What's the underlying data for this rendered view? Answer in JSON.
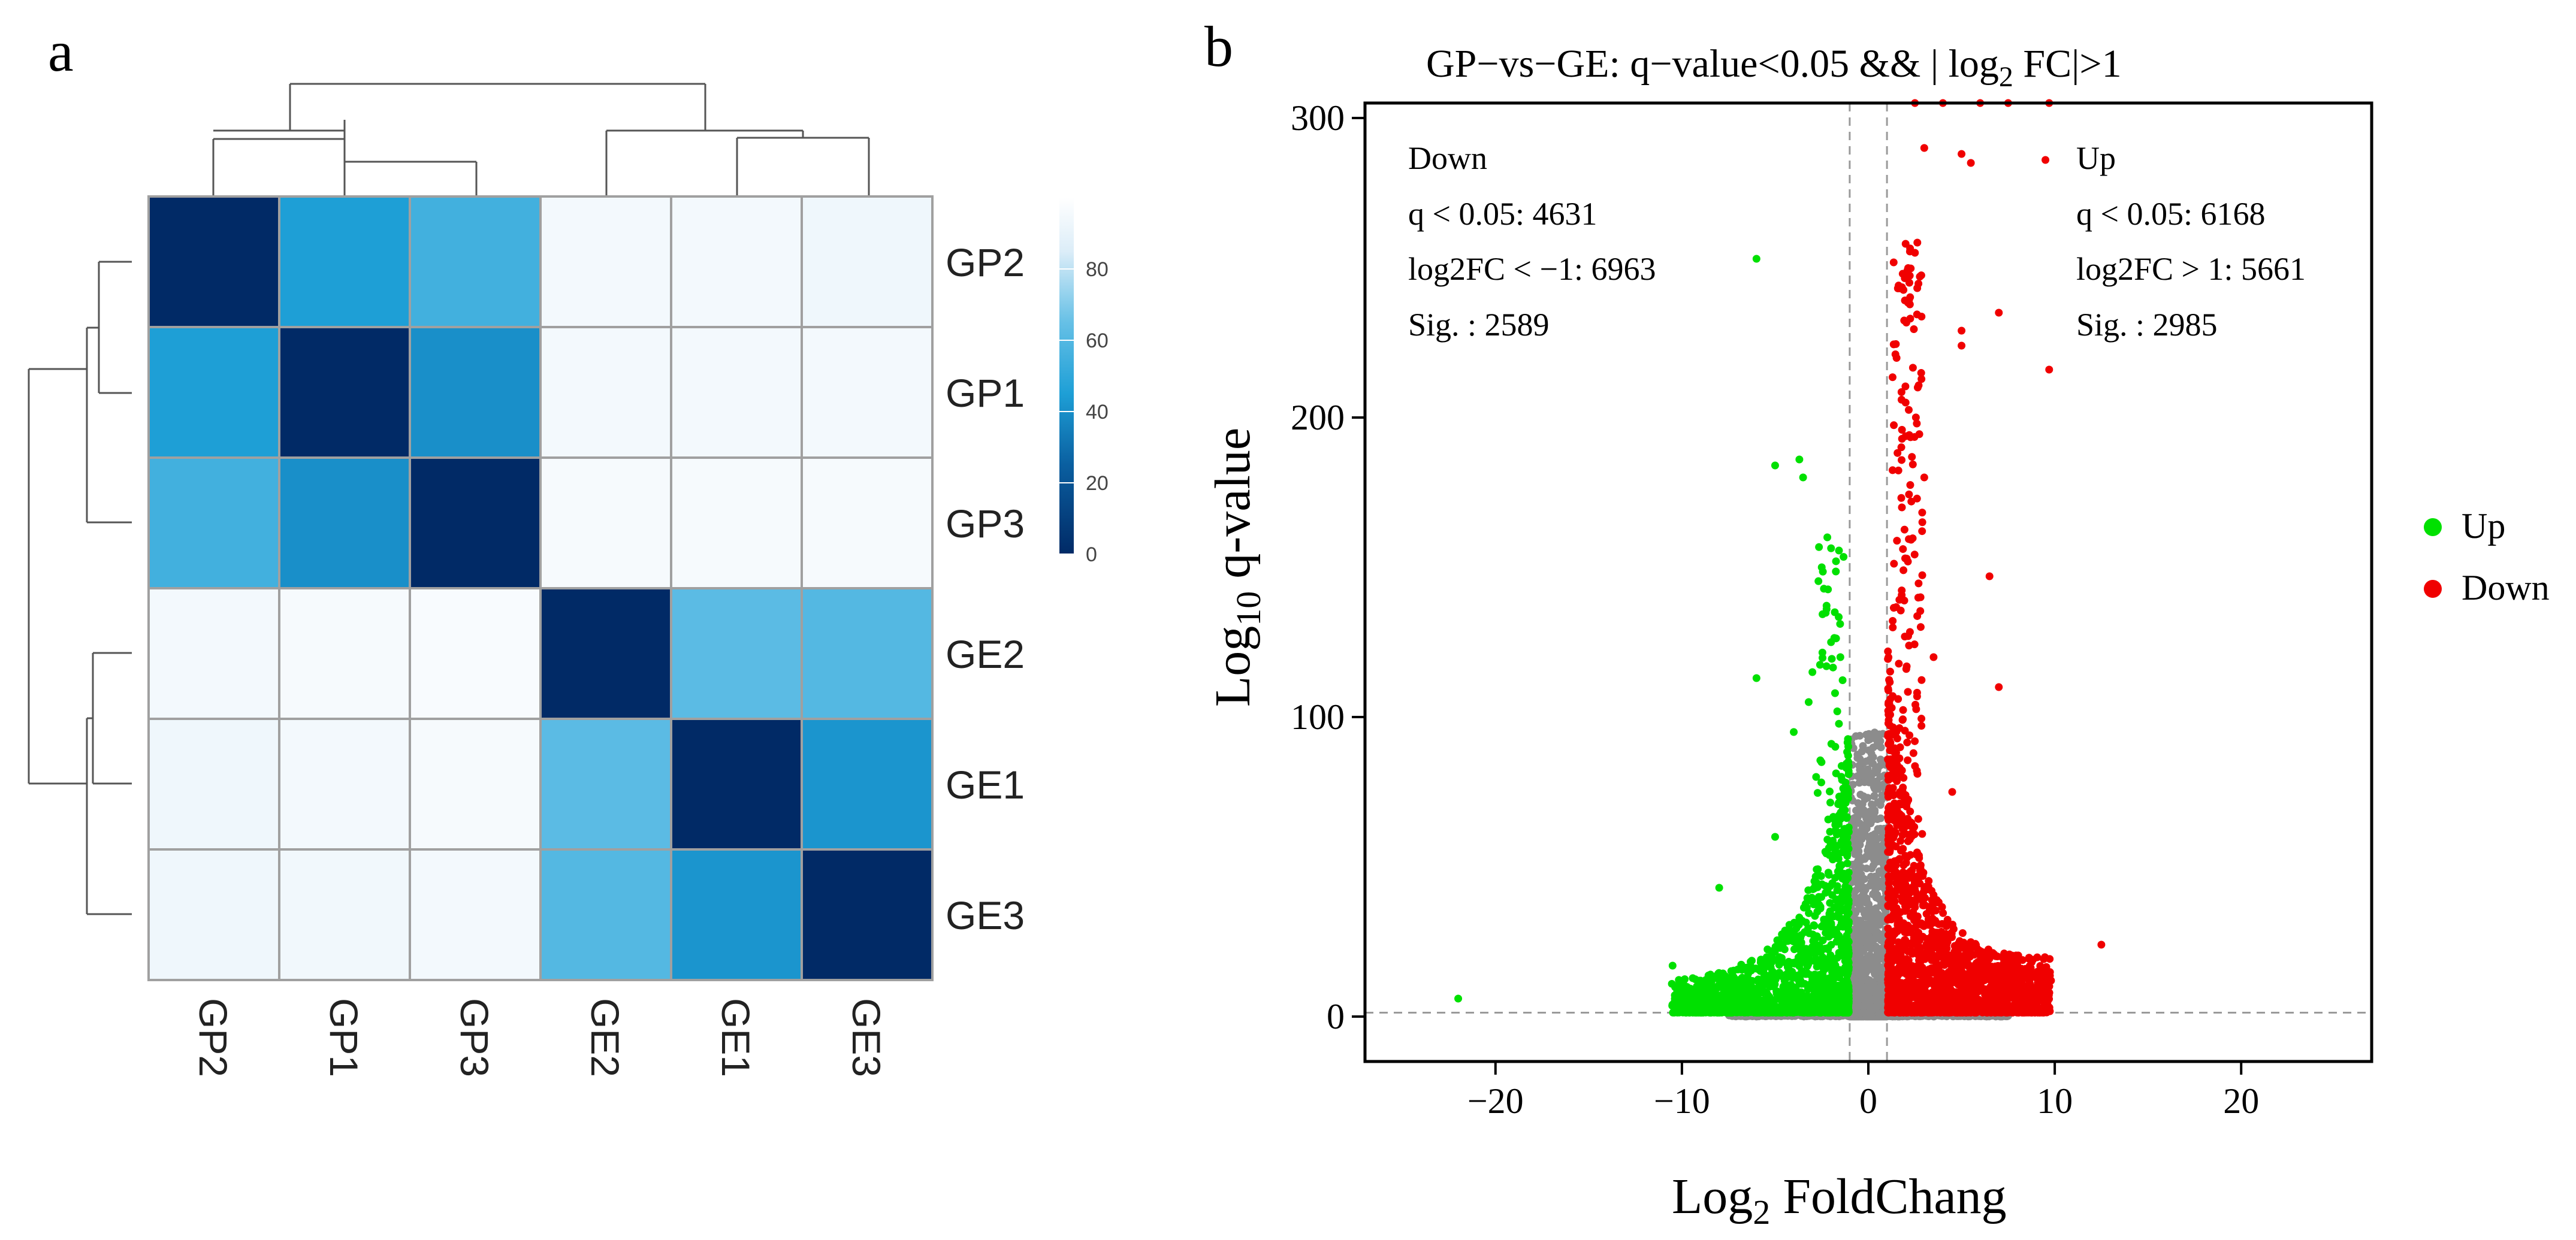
{
  "panels": {
    "a": {
      "letter": "a"
    },
    "b": {
      "letter": "b"
    }
  },
  "chart_data": [
    {
      "type": "heatmap",
      "title": "",
      "row_labels": [
        "GP2",
        "GP1",
        "GP3",
        "GE2",
        "GE1",
        "GE3"
      ],
      "col_labels": [
        "GP2",
        "GP1",
        "GP3",
        "GE2",
        "GE1",
        "GE3"
      ],
      "values": [
        [
          0,
          45,
          55,
          95,
          95,
          93
        ],
        [
          45,
          0,
          40,
          95,
          95,
          95
        ],
        [
          55,
          40,
          0,
          96,
          96,
          96
        ],
        [
          95,
          96,
          97,
          0,
          62,
          60
        ],
        [
          93,
          95,
          96,
          62,
          0,
          42
        ],
        [
          93,
          94,
          95,
          60,
          42,
          0
        ]
      ],
      "colorbar": {
        "min": 0,
        "max": 100,
        "ticks": [
          0,
          20,
          40,
          60,
          80
        ]
      },
      "row_dendrogram": true,
      "col_dendrogram": true,
      "colors": {
        "low": "#012a66",
        "mid": "#1e9fd6",
        "high": "#ffffff",
        "grid": "#a0a0a0"
      }
    },
    {
      "type": "scatter",
      "title_parts": {
        "main": "GP−vs−GE: q−value<0.05 && | log",
        "sub": "2",
        "tail": " FC|>1"
      },
      "xlabel": {
        "main": "Log",
        "sub": "2",
        "tail": " FoldChang"
      },
      "ylabel": {
        "main": "Log",
        "sub": "10",
        "tail": " q-value"
      },
      "xlim": [
        -27,
        27
      ],
      "ylim": [
        -15,
        305
      ],
      "xticks": [
        -20,
        -10,
        0,
        10,
        20
      ],
      "yticks": [
        0,
        100,
        200,
        300
      ],
      "xtick_labels": [
        "−20",
        "−10",
        "0",
        "10",
        "20"
      ],
      "ytick_labels": [
        "0",
        "100",
        "200",
        "300"
      ],
      "threshold_lines": {
        "x": [
          -1,
          1
        ],
        "y": 1.3
      },
      "annotations": {
        "down": [
          "Down",
          "q < 0.05: 4631",
          "log2FC < −1: 6963",
          "Sig. : 2589"
        ],
        "up": [
          "Up",
          "q < 0.05: 6168",
          "log2FC > 1: 5661",
          "Sig. : 2985"
        ]
      },
      "legend": [
        {
          "label": "Up",
          "color": "#00e000"
        },
        {
          "label": "Down",
          "color": "#f00000"
        }
      ],
      "series": [
        {
          "name": "Up",
          "color": "#00e000",
          "points": [
            [
              -22,
              6
            ],
            [
              -6,
              253
            ],
            [
              -5,
              184
            ],
            [
              -3.7,
              186
            ],
            [
              -3.5,
              180
            ],
            [
              -2.2,
              160
            ],
            [
              -2.5,
              150
            ],
            [
              -2,
              125
            ],
            [
              -3,
              115
            ],
            [
              -6,
              113
            ],
            [
              -8,
              43
            ],
            [
              -10.5,
              17
            ],
            [
              -9,
              12
            ],
            [
              -4,
              95
            ],
            [
              -2.8,
              80
            ],
            [
              -5,
              60
            ],
            [
              -3.2,
              105
            ],
            [
              -1.8,
              135
            ],
            [
              -1.5,
              120
            ]
          ]
        },
        {
          "name": "Down",
          "color": "#f00000",
          "points": [
            [
              2.5,
              305
            ],
            [
              4,
              305
            ],
            [
              6,
              305
            ],
            [
              7.5,
              305
            ],
            [
              9.7,
              305
            ],
            [
              3,
              290
            ],
            [
              5,
              288
            ],
            [
              5.5,
              285
            ],
            [
              9.5,
              286
            ],
            [
              2,
              258
            ],
            [
              2.5,
              255
            ],
            [
              2.2,
              245
            ],
            [
              7,
              235
            ],
            [
              5,
              229
            ],
            [
              5,
              224
            ],
            [
              9.7,
              216
            ],
            [
              2,
              205
            ],
            [
              2.6,
              198
            ],
            [
              6.5,
              147
            ],
            [
              7,
              110
            ],
            [
              12.5,
              24
            ],
            [
              9.8,
              12
            ],
            [
              3,
              180
            ],
            [
              1.8,
              170
            ],
            [
              2.8,
              140
            ],
            [
              1.5,
              95
            ],
            [
              4.5,
              75
            ],
            [
              3.5,
              120
            ]
          ]
        },
        {
          "name": "NS",
          "color": "#8c8c8c",
          "points": []
        }
      ]
    }
  ]
}
